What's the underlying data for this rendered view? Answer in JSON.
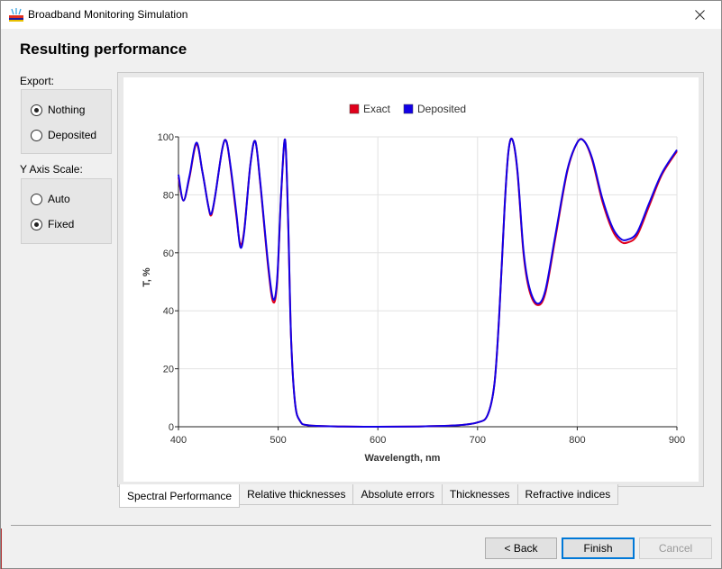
{
  "window": {
    "title": "Broadband Monitoring Simulation",
    "close_icon": "close-icon"
  },
  "page": {
    "title": "Resulting performance"
  },
  "export": {
    "label": "Export:",
    "options": [
      {
        "label": "Nothing",
        "selected": true
      },
      {
        "label": "Deposited",
        "selected": false
      }
    ]
  },
  "yscale": {
    "label": "Y Axis Scale:",
    "options": [
      {
        "label": "Auto",
        "selected": false
      },
      {
        "label": "Fixed",
        "selected": true
      }
    ]
  },
  "tabs": [
    {
      "label": "Spectral Performance",
      "active": true
    },
    {
      "label": "Relative thicknesses",
      "active": false
    },
    {
      "label": "Absolute errors",
      "active": false
    },
    {
      "label": "Thicknesses",
      "active": false
    },
    {
      "label": "Refractive indices",
      "active": false
    }
  ],
  "buttons": {
    "back": "< Back",
    "finish": "Finish",
    "cancel": "Cancel"
  },
  "chart_data": {
    "type": "line",
    "xlabel": "Wavelength, nm",
    "ylabel": "T, %",
    "xlim": [
      400,
      900
    ],
    "ylim": [
      0,
      100
    ],
    "xticks": [
      400,
      500,
      600,
      700,
      800,
      900
    ],
    "yticks": [
      0,
      20,
      40,
      60,
      80,
      100
    ],
    "grid": true,
    "legend_position": "top-center",
    "series": [
      {
        "name": "Exact",
        "color": "#e0001b",
        "points": [
          [
            400,
            86
          ],
          [
            405,
            78
          ],
          [
            411,
            86
          ],
          [
            418,
            97.5
          ],
          [
            424,
            88
          ],
          [
            430,
            76
          ],
          [
            433,
            73
          ],
          [
            437,
            80
          ],
          [
            444,
            96
          ],
          [
            448,
            98.5
          ],
          [
            452,
            90
          ],
          [
            458,
            73
          ],
          [
            462,
            63
          ],
          [
            466,
            68
          ],
          [
            472,
            90
          ],
          [
            477,
            98.5
          ],
          [
            482,
            84
          ],
          [
            490,
            55
          ],
          [
            495,
            43
          ],
          [
            499,
            50
          ],
          [
            503,
            80
          ],
          [
            507,
            99
          ],
          [
            510,
            70
          ],
          [
            513,
            30
          ],
          [
            517,
            8
          ],
          [
            522,
            2
          ],
          [
            530,
            0.5
          ],
          [
            560,
            0.1
          ],
          [
            600,
            0
          ],
          [
            640,
            0.1
          ],
          [
            680,
            0.5
          ],
          [
            700,
            1.5
          ],
          [
            710,
            4
          ],
          [
            717,
            15
          ],
          [
            722,
            40
          ],
          [
            727,
            75
          ],
          [
            731,
            95
          ],
          [
            735,
            99
          ],
          [
            740,
            88
          ],
          [
            746,
            60
          ],
          [
            752,
            47
          ],
          [
            760,
            42
          ],
          [
            768,
            46
          ],
          [
            778,
            65
          ],
          [
            790,
            88
          ],
          [
            800,
            98
          ],
          [
            807,
            98.5
          ],
          [
            815,
            92
          ],
          [
            825,
            78
          ],
          [
            835,
            68
          ],
          [
            843,
            64
          ],
          [
            850,
            63.5
          ],
          [
            860,
            66
          ],
          [
            872,
            76
          ],
          [
            885,
            87
          ],
          [
            900,
            95
          ]
        ]
      },
      {
        "name": "Deposited",
        "color": "#1200e6",
        "points": [
          [
            400,
            87
          ],
          [
            405,
            78
          ],
          [
            411,
            86.5
          ],
          [
            418,
            98
          ],
          [
            424,
            88
          ],
          [
            430,
            76
          ],
          [
            433,
            73.5
          ],
          [
            437,
            80
          ],
          [
            444,
            96
          ],
          [
            448,
            98.5
          ],
          [
            452,
            90.5
          ],
          [
            458,
            74
          ],
          [
            462,
            62
          ],
          [
            466,
            67.5
          ],
          [
            472,
            90
          ],
          [
            477,
            98.5
          ],
          [
            482,
            84.5
          ],
          [
            490,
            56
          ],
          [
            495,
            44
          ],
          [
            499,
            51
          ],
          [
            503,
            80.5
          ],
          [
            507,
            99
          ],
          [
            510,
            71
          ],
          [
            513,
            30
          ],
          [
            517,
            8
          ],
          [
            522,
            2
          ],
          [
            530,
            0.5
          ],
          [
            560,
            0.1
          ],
          [
            600,
            0
          ],
          [
            640,
            0.1
          ],
          [
            680,
            0.5
          ],
          [
            700,
            1.5
          ],
          [
            710,
            4
          ],
          [
            717,
            15
          ],
          [
            722,
            40
          ],
          [
            727,
            75
          ],
          [
            731,
            95
          ],
          [
            735,
            99
          ],
          [
            740,
            88.5
          ],
          [
            746,
            61
          ],
          [
            752,
            48
          ],
          [
            760,
            42.5
          ],
          [
            768,
            47
          ],
          [
            778,
            66
          ],
          [
            790,
            88.5
          ],
          [
            800,
            98
          ],
          [
            807,
            98.5
          ],
          [
            815,
            92.5
          ],
          [
            825,
            79
          ],
          [
            835,
            69
          ],
          [
            843,
            65
          ],
          [
            850,
            64.5
          ],
          [
            860,
            67
          ],
          [
            872,
            77
          ],
          [
            885,
            87.5
          ],
          [
            900,
            95.5
          ]
        ]
      }
    ]
  }
}
